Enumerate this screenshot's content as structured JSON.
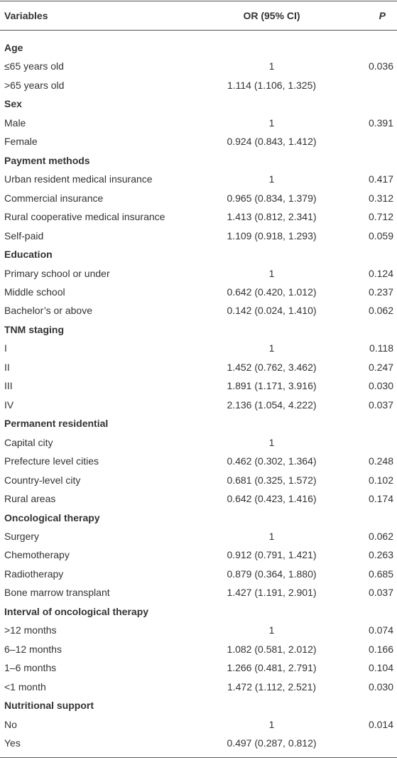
{
  "table": {
    "columns": [
      "Variables",
      "OR (95% CI)",
      "P"
    ],
    "groups": [
      {
        "label": "Age",
        "rows": [
          [
            "≤65 years old",
            "1",
            "0.036"
          ],
          [
            ">65 years old",
            "1.114 (1.106, 1.325)"
          ]
        ]
      },
      {
        "label": "Sex",
        "rows": [
          [
            "Male",
            "1",
            "0.391"
          ],
          [
            "Female",
            "0.924 (0.843, 1.412)"
          ]
        ]
      },
      {
        "label": "Payment methods",
        "rows": [
          [
            "Urban resident medical insurance",
            "1",
            "0.417"
          ],
          [
            "Commercial insurance",
            "0.965 (0.834, 1.379)",
            "0.312"
          ],
          [
            "Rural cooperative medical insurance",
            "1.413 (0.812, 2.341)",
            "0.712"
          ],
          [
            "Self-paid",
            "1.109 (0.918, 1.293)",
            "0.059"
          ]
        ]
      },
      {
        "label": "Education",
        "rows": [
          [
            "Primary school or under",
            "1",
            "0.124"
          ],
          [
            "Middle school",
            "0.642 (0.420, 1.012)",
            "0.237"
          ],
          [
            "Bachelor’s or above",
            "0.142 (0.024, 1.410)",
            "0.062"
          ]
        ]
      },
      {
        "label": "TNM staging",
        "rows": [
          [
            "I",
            "1",
            "0.118"
          ],
          [
            "II",
            "1.452 (0.762, 3.462)",
            "0.247"
          ],
          [
            "III",
            "1.891 (1.171, 3.916)",
            "0.030"
          ],
          [
            "IV",
            "2.136 (1.054, 4.222)",
            "0.037"
          ]
        ]
      },
      {
        "label": "Permanent residential",
        "rows": [
          [
            "Capital city",
            "1"
          ],
          [
            "Prefecture level cities",
            "0.462 (0.302, 1.364)",
            "0.248"
          ],
          [
            "Country-level city",
            "0.681 (0.325, 1.572)",
            "0.102"
          ],
          [
            "Rural areas",
            "0.642 (0.423, 1.416)",
            "0.174"
          ]
        ]
      },
      {
        "label": "Oncological therapy",
        "rows": [
          [
            "Surgery",
            "1",
            "0.062"
          ],
          [
            "Chemotherapy",
            "0.912 (0.791, 1.421)",
            "0.263"
          ],
          [
            "Radiotherapy",
            "0.879 (0.364, 1.880)",
            "0.685"
          ],
          [
            "Bone marrow transplant",
            "1.427 (1.191, 2.901)",
            "0.037"
          ]
        ]
      },
      {
        "label": "Interval of oncological therapy",
        "rows": [
          [
            ">12 months",
            "1",
            "0.074"
          ],
          [
            "6–12 months",
            "1.082 (0.581, 2.012)",
            "0.166"
          ],
          [
            "1–6 months",
            "1.266 (0.481, 2.791)",
            "0.104"
          ],
          [
            "<1 month",
            "1.472 (1.112, 2.521)",
            "0.030"
          ]
        ]
      },
      {
        "label": "Nutritional support",
        "rows": [
          [
            "No",
            "1",
            "0.014"
          ],
          [
            "Yes",
            "0.497 (0.287, 0.812)"
          ]
        ]
      }
    ]
  }
}
